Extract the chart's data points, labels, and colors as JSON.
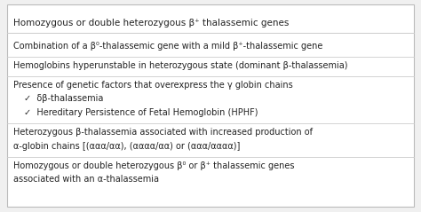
{
  "bg_color": "#f0f0f0",
  "box_color": "white",
  "border_color": "#bbbbbb",
  "sep_color": "#cccccc",
  "text_color": "#222222",
  "header_text": "Homozygous or double heterozygous β⁺ thalassemic genes",
  "rows": [
    {
      "indent": 0,
      "text": "Combination of a β⁰-thalassemic gene with a mild β⁺-thalassemic gene"
    },
    {
      "indent": 0,
      "text": "Hemoglobins hyperunstable in heterozygous state (dominant β-thalassemia)"
    },
    {
      "indent": 0,
      "text": "Presence of genetic factors that overexpress the γ globin chains"
    },
    {
      "indent": 1,
      "text": "✓  δβ-thalassemia"
    },
    {
      "indent": 1,
      "text": "✓  Hereditary Persistence of Fetal Hemoglobin (HPHF)"
    },
    {
      "indent": 0,
      "text": "Heterozygous β-thalassemia associated with increased production of"
    },
    {
      "indent": 0,
      "text": "α-globin chains [(ααα/αα), (αααα/αα) or (ααα/αααα)]"
    },
    {
      "indent": 0,
      "text": "Homozygous or double heterozygous β⁰ or β⁺ thalassemic genes"
    },
    {
      "indent": 0,
      "text": "associated with an α-thalassemia"
    }
  ],
  "header_font_size": 7.5,
  "row_font_size": 7.0,
  "groups": [
    [
      0
    ],
    [
      1
    ],
    [
      2,
      3,
      4
    ],
    [
      5,
      6
    ],
    [
      7,
      8
    ]
  ]
}
